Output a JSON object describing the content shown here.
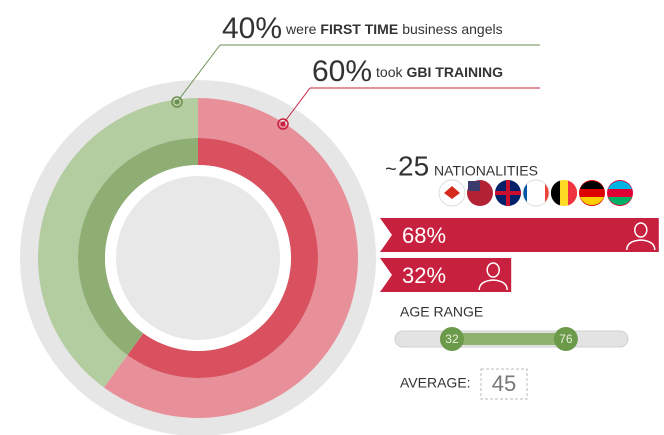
{
  "chart_data": {
    "type": "donut",
    "rings": [
      {
        "values": [
          60,
          40
        ],
        "colors": [
          "#e8909a",
          "#b3cca0"
        ]
      },
      {
        "values": [
          60,
          40
        ],
        "colors": [
          "#d9505f",
          "#8fae74"
        ]
      }
    ],
    "callouts": [
      {
        "value": 40,
        "value_label": "40%",
        "before": "were",
        "bold": "FIRST TIME",
        "after": "business angels",
        "color": "#6a8f4e"
      },
      {
        "value": 60,
        "value_label": "60%",
        "before": "took",
        "bold": "GBI TRAINING",
        "color": "#c8203f"
      }
    ],
    "nationalities": {
      "approx": "~",
      "value": 25,
      "label": "NATIONALITIES"
    },
    "gender": {
      "values": [
        68,
        32
      ],
      "value_labels": [
        "68%",
        "32%"
      ],
      "color": "#c8203f"
    },
    "age_range": {
      "title": "AGE RANGE",
      "min": 32,
      "max": 76,
      "xlim": [
        10,
        100
      ],
      "color": "#6a9a4a"
    },
    "average": {
      "label": "AVERAGE:",
      "value": 45
    }
  }
}
